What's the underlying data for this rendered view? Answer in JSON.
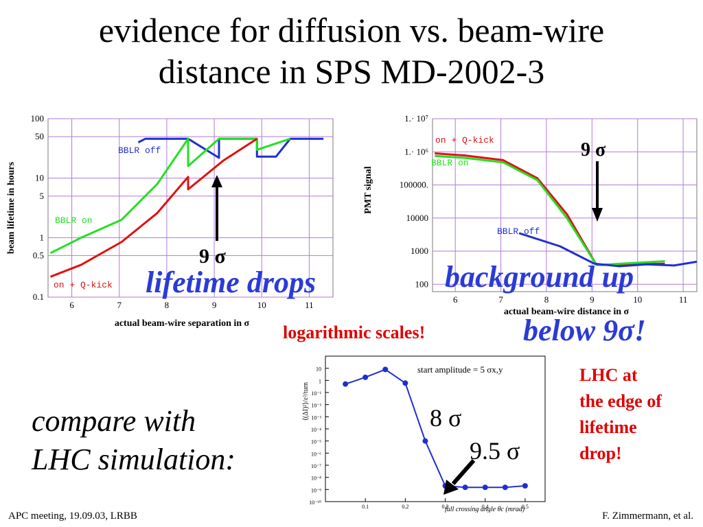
{
  "slide": {
    "title_line1": "evidence for diffusion vs. beam-wire",
    "title_line2": "distance in SPS MD-2002-3",
    "callouts": {
      "lifetime_drops": "lifetime drops",
      "background_up": "background up",
      "below_9sigma": "below 9σ!",
      "logarithmic_scales": "logarithmic scales!",
      "compare_line1": "compare with",
      "compare_line2": "LHC simulation:",
      "lhc_line1": "LHC at",
      "lhc_line2": "the edge of",
      "lhc_line3": "lifetime",
      "lhc_line4": "drop!"
    },
    "footer_left": "APC meeting, 19.09.03, LRBB",
    "footer_right": "F. Zimmermann, et al."
  },
  "chart_data": [
    {
      "type": "line",
      "name": "beam-lifetime",
      "xlabel": "actual beam-wire separation in σ",
      "ylabel": "beam lifetime in hours",
      "xlim": [
        5.5,
        11.5
      ],
      "ylim": [
        0.1,
        100
      ],
      "yscale": "log",
      "grid": true,
      "x_ticks": [
        6,
        7,
        8,
        9,
        10,
        11
      ],
      "y_ticks": [
        {
          "value": 100,
          "label": "100"
        },
        {
          "value": 50,
          "label": "50"
        },
        {
          "value": 10,
          "label": "10"
        },
        {
          "value": 5,
          "label": "5"
        },
        {
          "value": 1,
          "label": "1"
        },
        {
          "value": 0.5,
          "label": "0.5"
        },
        {
          "value": 0.1,
          "label": "0.1"
        }
      ],
      "annotation": {
        "text": "9 σ",
        "x": 9.0
      },
      "series": [
        {
          "name": "BBLR off",
          "color": "#1f2fd0",
          "points": [
            [
              7.4,
              40
            ],
            [
              7.55,
              46
            ],
            [
              8.45,
              46
            ],
            [
              9.1,
              22
            ],
            [
              9.1,
              46
            ],
            [
              9.9,
              46
            ],
            [
              9.9,
              23
            ],
            [
              10.3,
              23
            ],
            [
              10.6,
              46
            ],
            [
              11.3,
              46
            ]
          ]
        },
        {
          "name": "BBLR on",
          "color": "#22e022",
          "points": [
            [
              5.55,
              0.55
            ],
            [
              6.2,
              1.0
            ],
            [
              7.05,
              2.0
            ],
            [
              7.8,
              8.0
            ],
            [
              8.45,
              46
            ],
            [
              8.45,
              16
            ],
            [
              9.1,
              46
            ],
            [
              9.9,
              46
            ],
            [
              9.9,
              30
            ],
            [
              10.6,
              46
            ]
          ]
        },
        {
          "name": "on + Q-kick",
          "color": "#e01010",
          "points": [
            [
              5.55,
              0.22
            ],
            [
              6.2,
              0.35
            ],
            [
              7.05,
              0.85
            ],
            [
              7.8,
              2.6
            ],
            [
              8.45,
              10.5
            ],
            [
              8.45,
              6.5
            ],
            [
              9.2,
              20
            ],
            [
              9.9,
              46
            ]
          ]
        }
      ]
    },
    {
      "type": "line",
      "name": "pmt-signal",
      "xlabel": "actual beam-wire distance in σ",
      "ylabel": "PMT signal",
      "xlim": [
        5.5,
        11.3
      ],
      "ylim": [
        60,
        10000000
      ],
      "yscale": "log",
      "grid": true,
      "x_ticks": [
        6,
        7,
        8,
        9,
        10,
        11
      ],
      "y_ticks": [
        {
          "value": 10000000,
          "label": "1.· 10⁷"
        },
        {
          "value": 1000000,
          "label": "1.· 10⁶"
        },
        {
          "value": 100000,
          "label": "100000."
        },
        {
          "value": 10000,
          "label": "10000"
        },
        {
          "value": 1000,
          "label": "1000"
        },
        {
          "value": 100,
          "label": "100"
        }
      ],
      "annotation": {
        "text": "9 σ",
        "x": 9.0
      },
      "series": [
        {
          "name": "on + Q-kick",
          "color": "#e01010",
          "points": [
            [
              5.55,
              900000
            ],
            [
              6.2,
              780000
            ],
            [
              7.05,
              560000
            ],
            [
              7.8,
              160000
            ],
            [
              8.45,
              13000
            ],
            [
              9.1,
              380
            ],
            [
              10.6,
              420
            ]
          ]
        },
        {
          "name": "BBLR on",
          "color": "#22e022",
          "points": [
            [
              5.55,
              750000
            ],
            [
              6.2,
              660000
            ],
            [
              7.05,
              480000
            ],
            [
              7.8,
              140000
            ],
            [
              8.45,
              10000
            ],
            [
              9.1,
              380
            ],
            [
              10.6,
              500
            ]
          ]
        },
        {
          "name": "BBLR off",
          "color": "#1f2fd0",
          "points": [
            [
              7.4,
              3500
            ],
            [
              8.3,
              1400
            ],
            [
              9.05,
              420
            ],
            [
              9.6,
              350
            ],
            [
              10.2,
              400
            ],
            [
              10.8,
              370
            ],
            [
              11.3,
              480
            ]
          ]
        }
      ]
    },
    {
      "type": "line",
      "name": "lhc-simulation",
      "title": "start amplitude = 5 σx,y",
      "xlabel": "full crossing angle θc (mrad)",
      "ylabel": "⟨(ΔI)²⟩/ε²/turn",
      "xlim": [
        0,
        0.55
      ],
      "ylim": [
        1e-10,
        100
      ],
      "yscale": "log",
      "x_ticks": [
        0.1,
        0.2,
        0.3,
        0.4,
        0.5
      ],
      "y_ticks": [
        {
          "value": 10,
          "label": "10"
        },
        {
          "value": 1,
          "label": "1"
        },
        {
          "value": 0.1,
          "label": "10⁻¹"
        },
        {
          "value": 0.01,
          "label": "10⁻²"
        },
        {
          "value": 0.001,
          "label": "10⁻³"
        },
        {
          "value": 0.0001,
          "label": "10⁻⁴"
        },
        {
          "value": 1e-05,
          "label": "10⁻⁵"
        },
        {
          "value": 1e-06,
          "label": "10⁻⁶"
        },
        {
          "value": 1e-07,
          "label": "10⁻⁷"
        },
        {
          "value": 1e-08,
          "label": "10⁻⁸"
        },
        {
          "value": 1e-09,
          "label": "10⁻⁹"
        },
        {
          "value": 1e-10,
          "label": "10⁻¹⁰"
        }
      ],
      "annotations": [
        {
          "text": "8 σ"
        },
        {
          "text": "9.5 σ",
          "x": 0.3
        }
      ],
      "series": [
        {
          "color": "#1f2fd0",
          "points": [
            [
              0.05,
              0.5
            ],
            [
              0.1,
              1.8
            ],
            [
              0.15,
              8
            ],
            [
              0.2,
              0.6
            ],
            [
              0.25,
              1e-05
            ],
            [
              0.3,
              2e-09
            ],
            [
              0.35,
              1.5e-09
            ],
            [
              0.4,
              1.5e-09
            ],
            [
              0.45,
              1.5e-09
            ],
            [
              0.5,
              2e-09
            ]
          ]
        }
      ]
    }
  ]
}
